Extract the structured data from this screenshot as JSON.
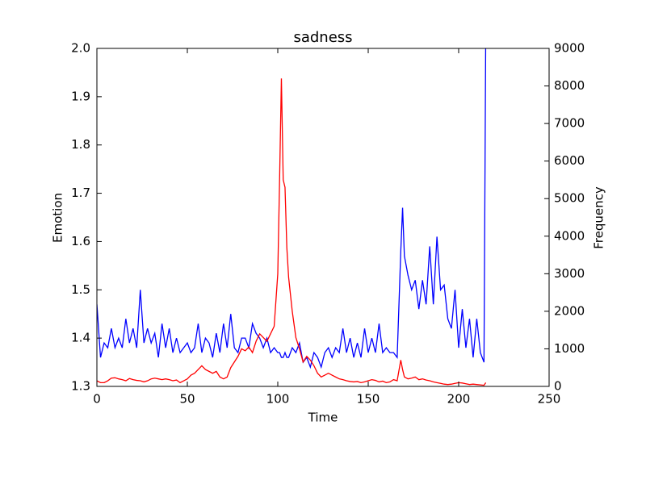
{
  "chart_data": {
    "type": "line",
    "title": "sadness",
    "xlabel": "Time",
    "ylabel": "Emotion",
    "y2label": "Frequency",
    "x": [
      0,
      2,
      4,
      6,
      8,
      10,
      12,
      14,
      16,
      18,
      20,
      22,
      24,
      26,
      28,
      30,
      32,
      34,
      36,
      38,
      40,
      42,
      44,
      46,
      48,
      50,
      52,
      54,
      56,
      58,
      60,
      62,
      64,
      66,
      68,
      70,
      72,
      74,
      76,
      78,
      80,
      82,
      84,
      86,
      88,
      90,
      92,
      94,
      96,
      98,
      100,
      101,
      102,
      103,
      104,
      105,
      106,
      108,
      110,
      112,
      114,
      116,
      118,
      120,
      122,
      124,
      126,
      128,
      130,
      132,
      134,
      136,
      138,
      140,
      142,
      144,
      146,
      148,
      150,
      152,
      154,
      156,
      158,
      160,
      162,
      164,
      166,
      168,
      169,
      170,
      172,
      174,
      176,
      178,
      180,
      182,
      184,
      186,
      188,
      190,
      192,
      194,
      196,
      198,
      200,
      202,
      204,
      206,
      208,
      210,
      212,
      214,
      215
    ],
    "series": [
      {
        "name": "Emotion",
        "color": "#0000ff",
        "axis": "y",
        "values": [
          1.47,
          1.36,
          1.39,
          1.38,
          1.42,
          1.38,
          1.4,
          1.38,
          1.44,
          1.39,
          1.42,
          1.38,
          1.5,
          1.39,
          1.42,
          1.39,
          1.41,
          1.36,
          1.43,
          1.38,
          1.42,
          1.37,
          1.4,
          1.37,
          1.38,
          1.39,
          1.37,
          1.38,
          1.43,
          1.37,
          1.4,
          1.39,
          1.36,
          1.41,
          1.37,
          1.43,
          1.38,
          1.45,
          1.38,
          1.37,
          1.4,
          1.4,
          1.38,
          1.43,
          1.41,
          1.4,
          1.38,
          1.4,
          1.37,
          1.38,
          1.37,
          1.37,
          1.36,
          1.36,
          1.37,
          1.36,
          1.36,
          1.38,
          1.37,
          1.39,
          1.35,
          1.36,
          1.34,
          1.37,
          1.36,
          1.34,
          1.37,
          1.38,
          1.36,
          1.38,
          1.37,
          1.42,
          1.37,
          1.4,
          1.36,
          1.39,
          1.36,
          1.42,
          1.37,
          1.4,
          1.37,
          1.43,
          1.37,
          1.38,
          1.37,
          1.37,
          1.36,
          1.58,
          1.67,
          1.57,
          1.53,
          1.5,
          1.52,
          1.46,
          1.52,
          1.47,
          1.59,
          1.47,
          1.61,
          1.5,
          1.51,
          1.44,
          1.42,
          1.5,
          1.38,
          1.46,
          1.38,
          1.44,
          1.36,
          1.44,
          1.37,
          1.35,
          2.05
        ]
      },
      {
        "name": "Frequency",
        "color": "#ff0000",
        "axis": "y2",
        "values": [
          150,
          100,
          100,
          150,
          220,
          230,
          200,
          180,
          150,
          210,
          180,
          160,
          150,
          120,
          150,
          200,
          220,
          200,
          180,
          200,
          180,
          150,
          170,
          100,
          150,
          200,
          300,
          350,
          450,
          550,
          450,
          400,
          350,
          400,
          250,
          200,
          250,
          500,
          650,
          800,
          1000,
          950,
          1050,
          900,
          1200,
          1400,
          1300,
          1200,
          1400,
          1600,
          3000,
          5500,
          8200,
          5500,
          5300,
          3700,
          2900,
          2000,
          1300,
          1000,
          650,
          800,
          700,
          550,
          350,
          250,
          300,
          350,
          300,
          250,
          200,
          180,
          150,
          130,
          120,
          130,
          100,
          120,
          150,
          180,
          160,
          120,
          140,
          100,
          120,
          180,
          150,
          700,
          450,
          250,
          200,
          220,
          250,
          180,
          200,
          170,
          150,
          120,
          100,
          80,
          60,
          50,
          60,
          80,
          100,
          90,
          70,
          50,
          60,
          50,
          40,
          30,
          100
        ]
      }
    ],
    "xlim": [
      0,
      250
    ],
    "xticks": [
      0,
      50,
      100,
      150,
      200,
      250
    ],
    "ylim": [
      1.3,
      2.0
    ],
    "yticks": [
      1.3,
      1.4,
      1.5,
      1.6,
      1.7,
      1.8,
      1.9,
      {
        "value": 2.0,
        "label": "2.0"
      }
    ],
    "y2lim": [
      0,
      9000
    ],
    "y2ticks": [
      0,
      1000,
      2000,
      3000,
      4000,
      5000,
      6000,
      7000,
      8000,
      9000
    ],
    "grid": false
  }
}
